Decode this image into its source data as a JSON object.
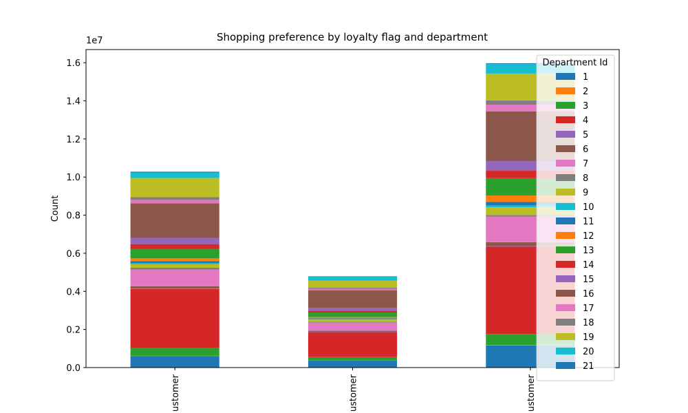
{
  "chart_data": {
    "type": "stacked_bar",
    "title": "Shopping preference by loyalty flag and department",
    "y_label": "Count",
    "y_offset_text": "1e7",
    "legend_title": "Department Id",
    "legend_position": "upper right",
    "categories": [
      "ustomer",
      "ustomer",
      "ustomer"
    ],
    "ylim": [
      0,
      16690000
    ],
    "yticks": [
      {
        "value": 0,
        "label": "0.0"
      },
      {
        "value": 2000000,
        "label": "0.2"
      },
      {
        "value": 4000000,
        "label": "0.4"
      },
      {
        "value": 6000000,
        "label": "0.6"
      },
      {
        "value": 8000000,
        "label": "0.8"
      },
      {
        "value": 10000000,
        "label": "1.0"
      },
      {
        "value": 12000000,
        "label": "1.2"
      },
      {
        "value": 14000000,
        "label": "1.4"
      },
      {
        "value": 16000000,
        "label": "1.6"
      }
    ],
    "series": [
      {
        "name": "1",
        "color": "#1f77b4",
        "values": [
          610000,
          360000,
          1160000
        ]
      },
      {
        "name": "2",
        "color": "#ff7f0e",
        "values": [
          10000,
          10000,
          20000
        ]
      },
      {
        "name": "3",
        "color": "#2ca02c",
        "values": [
          400000,
          180000,
          580000
        ]
      },
      {
        "name": "4",
        "color": "#d62728",
        "values": [
          3110000,
          1300000,
          4580000
        ]
      },
      {
        "name": "5",
        "color": "#9467bd",
        "values": [
          20000,
          10000,
          40000
        ]
      },
      {
        "name": "6",
        "color": "#8c564b",
        "values": [
          120000,
          70000,
          200000
        ]
      },
      {
        "name": "7",
        "color": "#e377c2",
        "values": [
          870000,
          430000,
          1350000
        ]
      },
      {
        "name": "8",
        "color": "#7f7f7f",
        "values": [
          100000,
          40000,
          80000
        ]
      },
      {
        "name": "9",
        "color": "#bcbd22",
        "values": [
          180000,
          120000,
          400000
        ]
      },
      {
        "name": "10",
        "color": "#17becf",
        "values": [
          70000,
          30000,
          100000
        ]
      },
      {
        "name": "11",
        "color": "#1f77b4",
        "values": [
          100000,
          40000,
          180000
        ]
      },
      {
        "name": "12",
        "color": "#ff7f0e",
        "values": [
          140000,
          60000,
          340000
        ]
      },
      {
        "name": "13",
        "color": "#2ca02c",
        "values": [
          500000,
          240000,
          910000
        ]
      },
      {
        "name": "14",
        "color": "#d62728",
        "values": [
          250000,
          100000,
          390000
        ]
      },
      {
        "name": "15",
        "color": "#9467bd",
        "values": [
          330000,
          140000,
          510000
        ]
      },
      {
        "name": "16",
        "color": "#8c564b",
        "values": [
          1810000,
          930000,
          2600000
        ]
      },
      {
        "name": "17",
        "color": "#e377c2",
        "values": [
          180000,
          70000,
          360000
        ]
      },
      {
        "name": "18",
        "color": "#7f7f7f",
        "values": [
          140000,
          60000,
          220000
        ]
      },
      {
        "name": "19",
        "color": "#bcbd22",
        "values": [
          1010000,
          380000,
          1410000
        ]
      },
      {
        "name": "20",
        "color": "#17becf",
        "values": [
          290000,
          200000,
          500000
        ]
      },
      {
        "name": "21",
        "color": "#1f77b4",
        "values": [
          40000,
          20000,
          40000
        ]
      }
    ]
  }
}
